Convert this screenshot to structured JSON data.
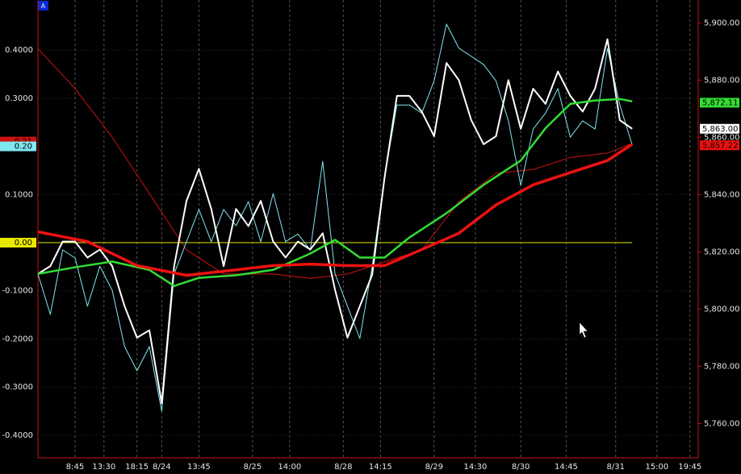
{
  "chart_data": {
    "type": "line",
    "badge": "A",
    "grid": true,
    "xlim": [
      0,
      160
    ],
    "xticks": [
      {
        "value": 9,
        "label": "8:45"
      },
      {
        "value": 16,
        "label": "13:30"
      },
      {
        "value": 24,
        "label": "18:15"
      },
      {
        "value": 30,
        "label": "8/24"
      },
      {
        "value": 39,
        "label": "13:45"
      },
      {
        "value": 52,
        "label": "8/25"
      },
      {
        "value": 61,
        "label": "14:00"
      },
      {
        "value": 74,
        "label": "8/28"
      },
      {
        "value": 83,
        "label": "14:15"
      },
      {
        "value": 96,
        "label": "8/29"
      },
      {
        "value": 106,
        "label": "14:30"
      },
      {
        "value": 117,
        "label": "8/30"
      },
      {
        "value": 128,
        "label": "14:45"
      },
      {
        "value": 140,
        "label": "8/31"
      },
      {
        "value": 150,
        "label": "15:00"
      },
      {
        "value": 158,
        "label": "19:45"
      }
    ],
    "ylim": [
      -0.447,
      0.504
    ],
    "yticks": [
      {
        "value": 0.4,
        "label": "0.4000"
      },
      {
        "value": 0.3,
        "label": "0.3000"
      },
      {
        "value": 0.1,
        "label": "0.1000"
      },
      {
        "value": -0.1,
        "label": "-0.1000"
      },
      {
        "value": -0.2,
        "label": "-0.2000"
      },
      {
        "value": -0.3,
        "label": "-0.3000"
      },
      {
        "value": -0.4,
        "label": "-0.4000"
      }
    ],
    "y2lim": [
      5748,
      5908
    ],
    "y2ticks": [
      {
        "value": 5900,
        "label": "5,900.00"
      },
      {
        "value": 5880,
        "label": "5,880.00"
      },
      {
        "value": 5860,
        "label": "5,860.00"
      },
      {
        "value": 5840,
        "label": "5,840.00"
      },
      {
        "value": 5820,
        "label": "5,820.00"
      },
      {
        "value": 5800,
        "label": "5,800.00"
      },
      {
        "value": 5780,
        "label": "5,780.00"
      },
      {
        "value": 5760,
        "label": "5,760.00"
      }
    ],
    "series": [
      {
        "color": "#cc1111",
        "axis": "y",
        "marker": {
          "value": 0.21,
          "label": "0.21"
        },
        "x": [
          0,
          9,
          18,
          27,
          36,
          45,
          57,
          66,
          75,
          84,
          93,
          102,
          111,
          120,
          129,
          138,
          144
        ],
        "values": [
          0.403,
          0.32,
          0.219,
          0.102,
          -0.015,
          -0.065,
          -0.065,
          -0.074,
          -0.065,
          -0.04,
          -0.015,
          0.085,
          0.144,
          0.152,
          0.177,
          0.186,
          0.206
        ]
      },
      {
        "color": "#e8e800",
        "axis": "y",
        "marker": {
          "value": 0,
          "label": "0.00"
        },
        "x": [
          0,
          144
        ],
        "values": [
          0,
          0
        ]
      },
      {
        "color": "#7fe8f0",
        "axis": "y",
        "marker": {
          "value": 0.2,
          "label": "0.20"
        },
        "x": [
          0,
          3,
          6,
          9,
          12,
          15,
          18,
          21,
          24,
          27,
          30,
          33,
          36,
          39,
          42,
          45,
          48,
          51,
          54,
          57,
          60,
          63,
          66,
          69,
          72,
          75,
          78,
          81,
          84,
          87,
          90,
          93,
          96,
          99,
          102,
          105,
          108,
          111,
          114,
          117,
          120,
          123,
          126,
          129,
          132,
          135,
          138,
          141,
          144
        ],
        "values": [
          -0.065,
          -0.149,
          -0.015,
          -0.032,
          -0.132,
          -0.049,
          -0.099,
          -0.216,
          -0.266,
          -0.216,
          -0.35,
          -0.065,
          0.002,
          0.069,
          0.002,
          0.069,
          0.035,
          0.085,
          0.002,
          0.102,
          0.002,
          0.018,
          -0.015,
          0.169,
          -0.065,
          -0.132,
          -0.199,
          -0.049,
          0.136,
          0.286,
          0.286,
          0.269,
          0.336,
          0.454,
          0.404,
          0.387,
          0.37,
          0.336,
          0.253,
          0.119,
          0.236,
          0.269,
          0.32,
          0.219,
          0.253,
          0.236,
          0.403,
          0.286,
          0.203
        ]
      },
      {
        "color": "#ffffff",
        "axis": "y2",
        "marker": {
          "value": 5863,
          "label": "5,863.00"
        },
        "x": [
          0,
          3,
          6,
          9,
          12,
          15,
          18,
          21,
          24,
          27,
          30,
          33,
          36,
          39,
          42,
          45,
          48,
          51,
          54,
          57,
          60,
          63,
          66,
          69,
          72,
          75,
          78,
          81,
          84,
          87,
          90,
          93,
          96,
          99,
          102,
          105,
          108,
          111,
          114,
          117,
          120,
          123,
          126,
          129,
          132,
          135,
          138,
          141,
          144
        ],
        "values": [
          5812.3,
          5815,
          5823.6,
          5823.6,
          5818,
          5820.8,
          5815,
          5801,
          5790,
          5792.6,
          5767,
          5815,
          5837.8,
          5849,
          5835,
          5815,
          5835,
          5829,
          5837.8,
          5823.6,
          5818,
          5823.6,
          5820.8,
          5826.5,
          5806.7,
          5790,
          5801,
          5812,
          5846,
          5874.5,
          5874.5,
          5869,
          5860.4,
          5886,
          5880,
          5866,
          5857.6,
          5860.4,
          5880,
          5863,
          5877,
          5871.7,
          5883,
          5874.5,
          5869,
          5877,
          5894.3,
          5866,
          5863
        ]
      },
      {
        "color": "#33dd33",
        "axis": "y2",
        "marker": {
          "value": 5872.11,
          "label": "5,872.11"
        },
        "x": [
          0,
          9,
          18,
          27,
          33,
          39,
          48,
          57,
          66,
          72,
          78,
          84,
          90,
          99,
          108,
          117,
          123,
          129,
          135,
          141,
          144
        ],
        "values": [
          5812.3,
          5814.6,
          5816.6,
          5813.7,
          5808.1,
          5810.9,
          5811.8,
          5813.7,
          5819.4,
          5824.2,
          5818,
          5818,
          5825,
          5833.5,
          5843.4,
          5851.9,
          5863.2,
          5871.7,
          5872.9,
          5873.4,
          5872.6
        ]
      },
      {
        "color": "#ee1111",
        "axis": "y2",
        "marker": {
          "value": 5857.22,
          "label": "5,857.22"
        },
        "x": [
          0,
          12,
          24,
          36,
          48,
          57,
          66,
          75,
          84,
          93,
          102,
          111,
          120,
          129,
          138,
          144
        ],
        "values": [
          5827,
          5823.6,
          5815.2,
          5811.8,
          5813.7,
          5815.2,
          5815.7,
          5815.2,
          5815.2,
          5820.8,
          5826.5,
          5836.4,
          5843.4,
          5847.7,
          5851.9,
          5857.6
        ]
      }
    ]
  }
}
